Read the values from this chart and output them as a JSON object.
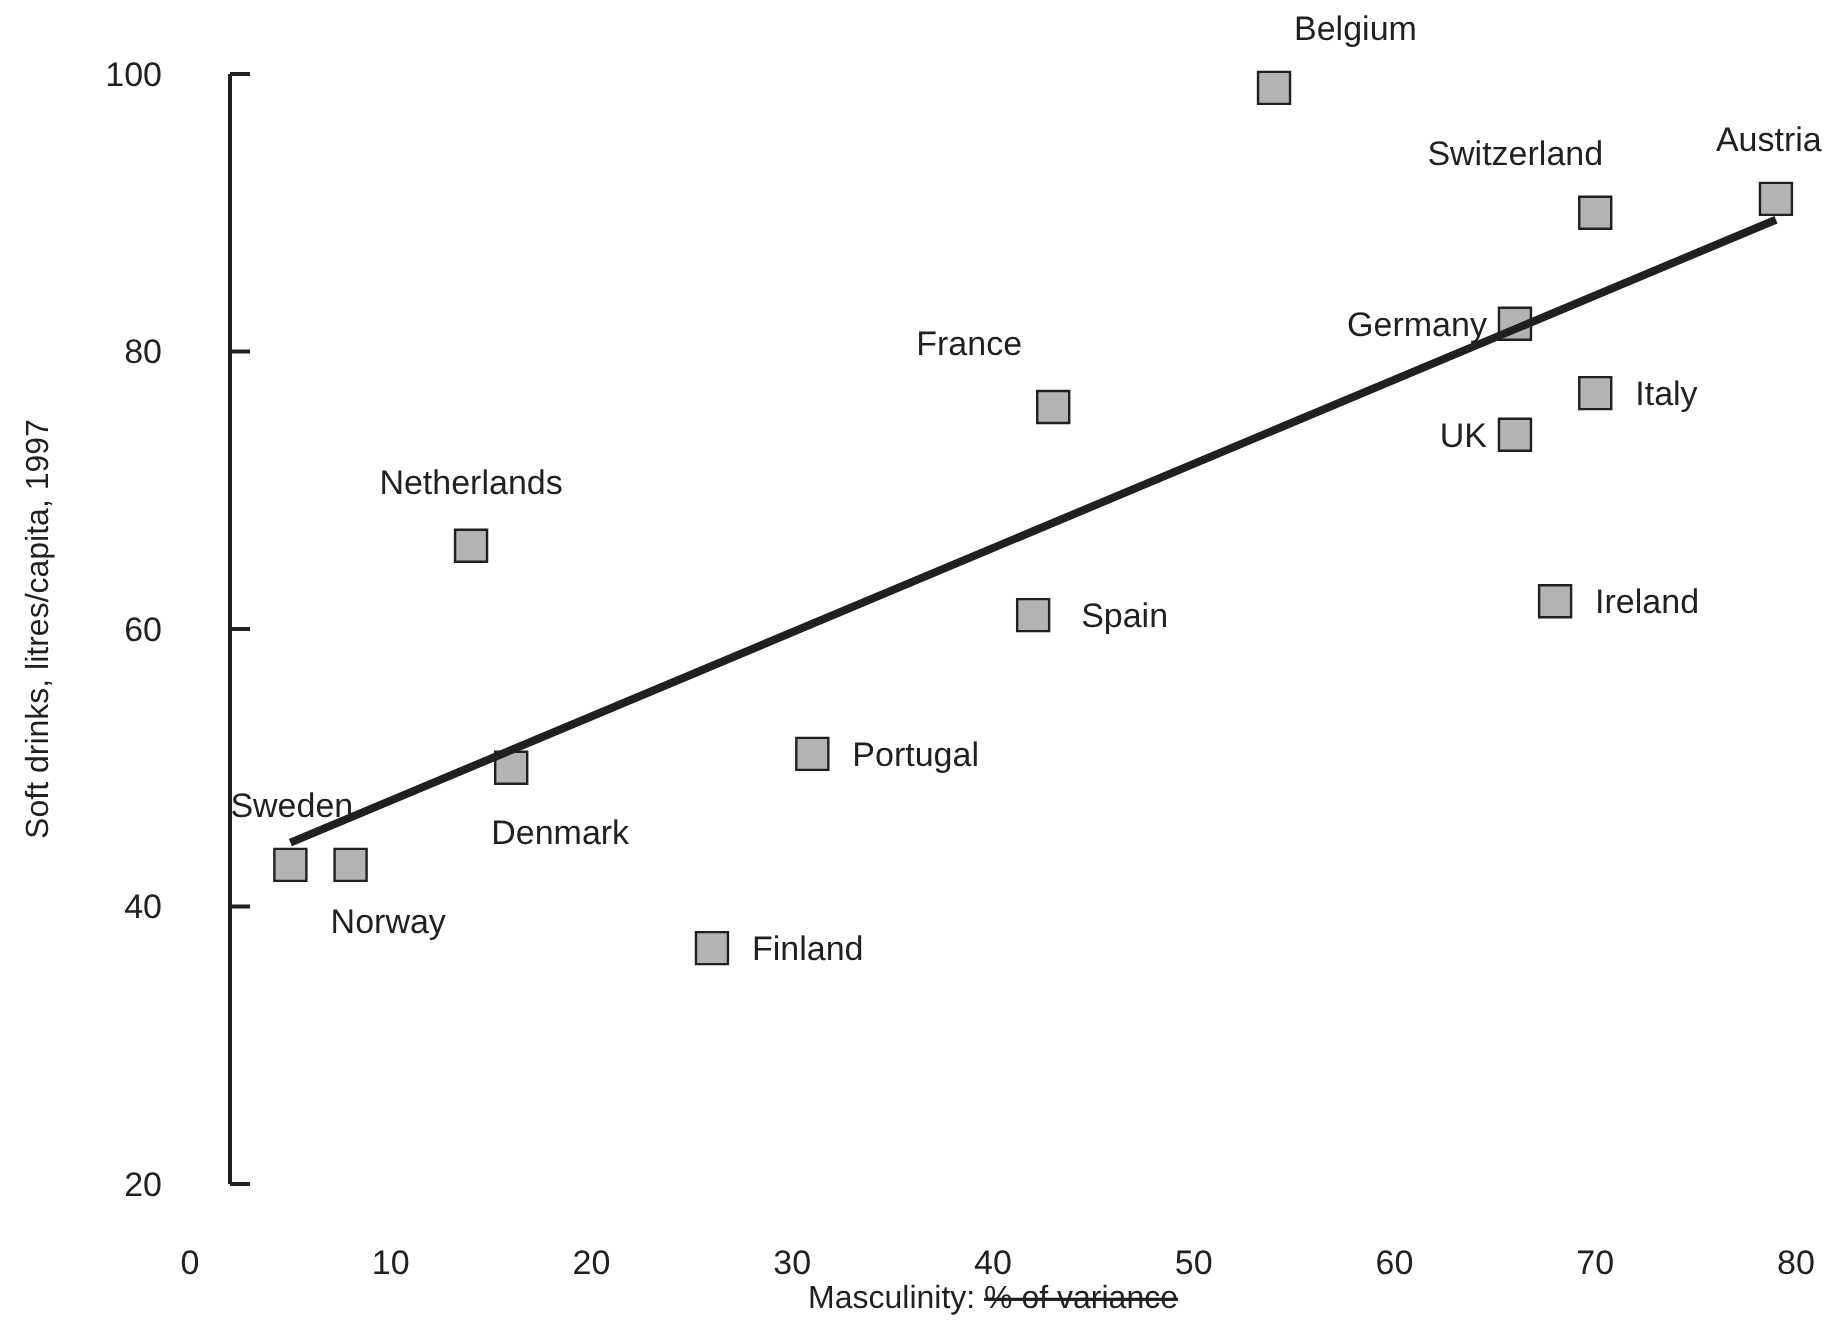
{
  "chart_data": {
    "type": "scatter",
    "xlabel": "Masculinity: % of variance",
    "ylabel": "Soft drinks, litres/capita, 1997",
    "xlim": [
      0,
      80
    ],
    "xticks": [
      0,
      10,
      20,
      30,
      40,
      50,
      60,
      70,
      80
    ],
    "ylim": [
      20,
      100
    ],
    "yticks": [
      20,
      40,
      60,
      80,
      100
    ],
    "grid": false,
    "series": [
      {
        "marker": "square",
        "color": "#b3b3b3",
        "x": [
          5,
          8,
          14,
          16,
          26,
          31,
          42,
          43,
          54,
          66,
          66,
          70,
          70,
          68,
          79
        ],
        "values": [
          43,
          43,
          66,
          50,
          37,
          51,
          61,
          76,
          99,
          82,
          74,
          90,
          77,
          62,
          91
        ]
      },
      {
        "type": "line",
        "color": "#231f20",
        "x": [
          5,
          79
        ],
        "values": [
          44.6,
          89.5
        ]
      }
    ],
    "annotations": [
      {
        "text": "Sweden",
        "x": 5,
        "y": 43
      },
      {
        "text": "Norway",
        "x": 8,
        "y": 43
      },
      {
        "text": "Netherlands",
        "x": 14,
        "y": 66
      },
      {
        "text": "Denmark",
        "x": 16,
        "y": 50
      },
      {
        "text": "Finland",
        "x": 26,
        "y": 37
      },
      {
        "text": "Portugal",
        "x": 31,
        "y": 51
      },
      {
        "text": "Spain",
        "x": 42,
        "y": 61
      },
      {
        "text": "France",
        "x": 43,
        "y": 76
      },
      {
        "text": "Belgium",
        "x": 54,
        "y": 99
      },
      {
        "text": "Germany",
        "x": 66,
        "y": 82
      },
      {
        "text": "UK",
        "x": 66,
        "y": 74
      },
      {
        "text": "Switzerland",
        "x": 70,
        "y": 90
      },
      {
        "text": "Italy",
        "x": 70,
        "y": 77
      },
      {
        "text": "Ireland",
        "x": 68,
        "y": 62
      },
      {
        "text": "Austria",
        "x": 79,
        "y": 91
      }
    ]
  }
}
